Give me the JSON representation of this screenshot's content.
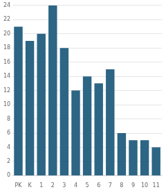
{
  "chart_data": {
    "type": "bar",
    "categories": [
      "PK",
      "K",
      "1",
      "2",
      "3",
      "4",
      "5",
      "6",
      "7",
      "8",
      "9",
      "10",
      "11"
    ],
    "values": [
      21,
      19,
      20,
      24,
      18,
      12,
      14,
      13,
      15,
      6,
      5,
      5,
      4
    ],
    "color": "#2d6584",
    "ylim": [
      0,
      24
    ],
    "yticks": [
      0,
      2,
      4,
      6,
      8,
      10,
      12,
      14,
      16,
      18,
      20,
      22,
      24
    ],
    "grid": true
  }
}
